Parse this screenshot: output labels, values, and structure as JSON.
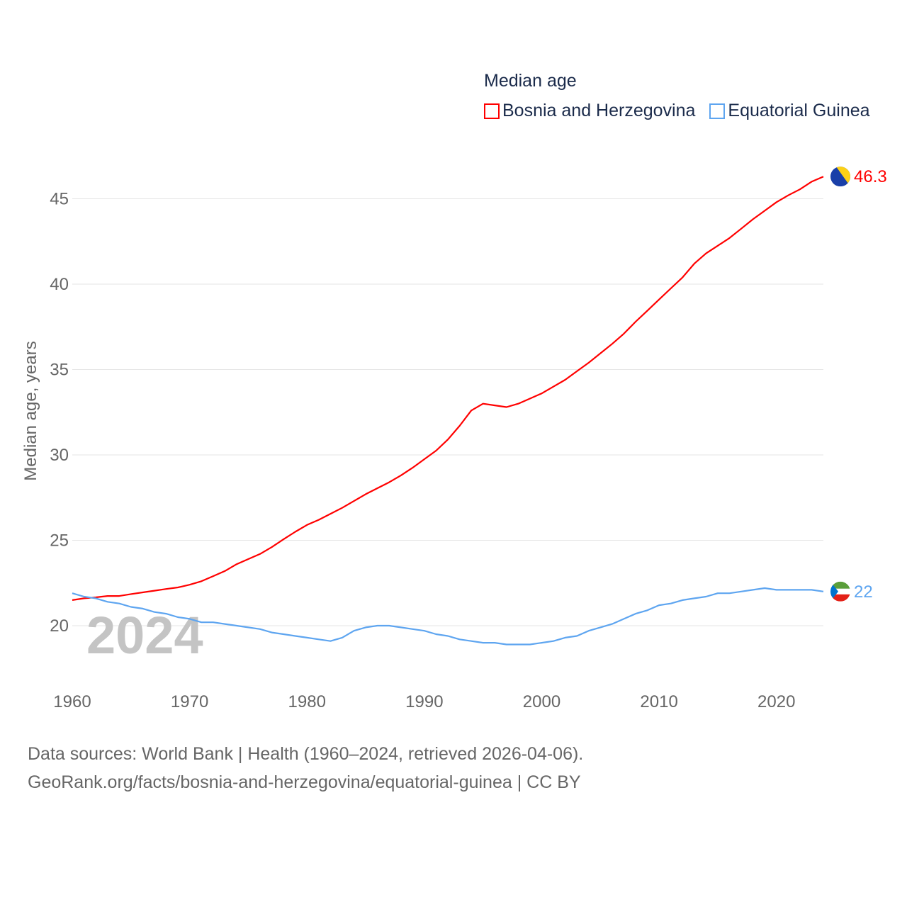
{
  "chart_data": {
    "type": "line",
    "title": "Median age",
    "ylabel": "Median age, years",
    "xlabel": "",
    "xlim": [
      1960,
      2024
    ],
    "ylim": [
      17,
      47.5
    ],
    "x_ticks": [
      "1960",
      "1970",
      "1980",
      "1990",
      "2000",
      "2010",
      "2020"
    ],
    "y_ticks": [
      "20",
      "25",
      "30",
      "35",
      "40",
      "45"
    ],
    "grid": true,
    "legend_position": "top-right",
    "year_watermark": "2024",
    "x": [
      1960,
      1961,
      1962,
      1963,
      1964,
      1965,
      1966,
      1967,
      1968,
      1969,
      1970,
      1971,
      1972,
      1973,
      1974,
      1975,
      1976,
      1977,
      1978,
      1979,
      1980,
      1981,
      1982,
      1983,
      1984,
      1985,
      1986,
      1987,
      1988,
      1989,
      1990,
      1991,
      1992,
      1993,
      1994,
      1995,
      1996,
      1997,
      1998,
      1999,
      2000,
      2001,
      2002,
      2003,
      2004,
      2005,
      2006,
      2007,
      2008,
      2009,
      2010,
      2011,
      2012,
      2013,
      2014,
      2015,
      2016,
      2017,
      2018,
      2019,
      2020,
      2021,
      2022,
      2023,
      2024
    ],
    "series": [
      {
        "name": "Bosnia and Herzegovina",
        "color": "#ff0000",
        "end_label": "46.3",
        "values": [
          21.5,
          21.6,
          21.66,
          21.74,
          21.74,
          21.85,
          21.95,
          22.05,
          22.15,
          22.24,
          22.4,
          22.6,
          22.9,
          23.2,
          23.6,
          23.9,
          24.2,
          24.6,
          25.06,
          25.5,
          25.9,
          26.2,
          26.55,
          26.9,
          27.3,
          27.7,
          28.05,
          28.4,
          28.8,
          29.25,
          29.75,
          30.25,
          30.9,
          31.7,
          32.6,
          33.0,
          32.9,
          32.8,
          33.0,
          33.3,
          33.6,
          34.0,
          34.4,
          34.9,
          35.4,
          35.95,
          36.5,
          37.1,
          37.8,
          38.45,
          39.1,
          39.75,
          40.4,
          41.2,
          41.8,
          42.25,
          42.7,
          43.25,
          43.8,
          44.3,
          44.8,
          45.2,
          45.55,
          46.0,
          46.3
        ]
      },
      {
        "name": "Equatorial Guinea",
        "color": "#5ea5f0",
        "end_label": "22",
        "values": [
          21.9,
          21.7,
          21.6,
          21.4,
          21.3,
          21.1,
          21.0,
          20.8,
          20.7,
          20.5,
          20.4,
          20.2,
          20.2,
          20.1,
          20.0,
          19.9,
          19.8,
          19.6,
          19.5,
          19.4,
          19.3,
          19.2,
          19.1,
          19.3,
          19.7,
          19.9,
          20.0,
          20.0,
          19.9,
          19.8,
          19.7,
          19.5,
          19.4,
          19.2,
          19.1,
          19.0,
          19.0,
          18.9,
          18.9,
          18.9,
          19.0,
          19.1,
          19.3,
          19.4,
          19.7,
          19.9,
          20.1,
          20.4,
          20.7,
          20.9,
          21.2,
          21.3,
          21.5,
          21.6,
          21.7,
          21.9,
          21.9,
          22.0,
          22.1,
          22.2,
          22.1,
          22.1,
          22.1,
          22.1,
          22.0
        ]
      }
    ]
  },
  "footer": {
    "line1": "Data sources: World Bank | Health (1960–2024, retrieved 2026-04-06).",
    "line2": "GeoRank.org/facts/bosnia-and-herzegovina/equatorial-guinea | CC BY"
  }
}
